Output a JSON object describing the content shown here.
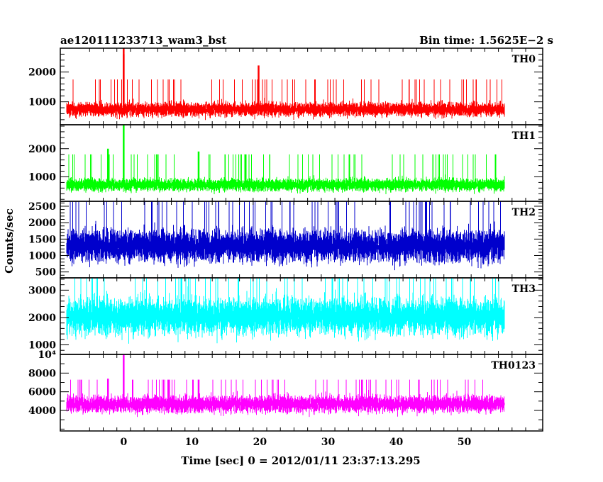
{
  "chart_data": {
    "type": "line",
    "title_left": "ae120111233713_wam3_bst",
    "title_right": "Bin time: 1.5625E−2 s",
    "xlabel": "Time [sec] 0 = 2012/01/11 23:37:13.295",
    "ylabel": "Counts/sec",
    "xlim": [
      -9.3,
      61.5
    ],
    "data_range": [
      -8.4,
      55.9
    ],
    "x_ticks": [
      0,
      10,
      20,
      30,
      40,
      50
    ],
    "x_tick_labels": [
      "0",
      "10",
      "20",
      "30",
      "40",
      "50"
    ],
    "grid": false,
    "series": [
      {
        "name": "TH0",
        "color": "#ff0000",
        "ylim": [
          230,
          2800
        ],
        "y_ticks": [
          1000,
          2000
        ],
        "y_tick_labels": [
          "1000",
          "2000"
        ],
        "y_minor_step": 200,
        "base": 750,
        "sd": 160,
        "lo": 250,
        "hi": 1750,
        "spikes": [
          [
            0.0,
            2800
          ],
          [
            19.8,
            2220
          ],
          [
            0.0,
            2600
          ]
        ]
      },
      {
        "name": "TH1",
        "color": "#00ff00",
        "ylim": [
          130,
          2850
        ],
        "y_ticks": [
          1000,
          2000
        ],
        "y_tick_labels": [
          "1000",
          "2000"
        ],
        "y_minor_step": 200,
        "base": 720,
        "sd": 150,
        "lo": 250,
        "hi": 1800,
        "spikes": [
          [
            0.0,
            2850
          ],
          [
            -2.3,
            2000
          ],
          [
            11.0,
            1900
          ]
        ]
      },
      {
        "name": "TH2",
        "color": "#0000cc",
        "ylim": [
          320,
          2650
        ],
        "y_ticks": [
          500,
          1000,
          1500,
          2000,
          2500
        ],
        "y_tick_labels": [
          "500",
          "1000",
          "1500",
          "2000",
          "2500"
        ],
        "y_minor_step": 100,
        "base": 1300,
        "sd": 330,
        "lo": 380,
        "hi": 2650,
        "spikes": []
      },
      {
        "name": "TH3",
        "color": "#00ffff",
        "ylim": [
          650,
          3450
        ],
        "y_ticks": [
          1000,
          2000,
          3000
        ],
        "y_tick_labels": [
          "1000",
          "2000",
          "3000"
        ],
        "y_minor_step": 200,
        "base": 2050,
        "sd": 450,
        "lo": 650,
        "hi": 3450,
        "spikes": []
      },
      {
        "name": "TH0123",
        "color": "#ff00ff",
        "ylim": [
          1800,
          10000
        ],
        "y_ticks": [
          4000,
          6000,
          8000,
          10000
        ],
        "y_tick_labels": [
          "4000",
          "6000",
          "8000",
          "10⁴"
        ],
        "y_minor_step": 1000,
        "base": 4700,
        "sd": 620,
        "lo": 2300,
        "hi": 7300,
        "spikes": [
          [
            0.0,
            10000
          ],
          [
            -2.3,
            7400
          ],
          [
            11.0,
            7300
          ]
        ]
      }
    ]
  }
}
